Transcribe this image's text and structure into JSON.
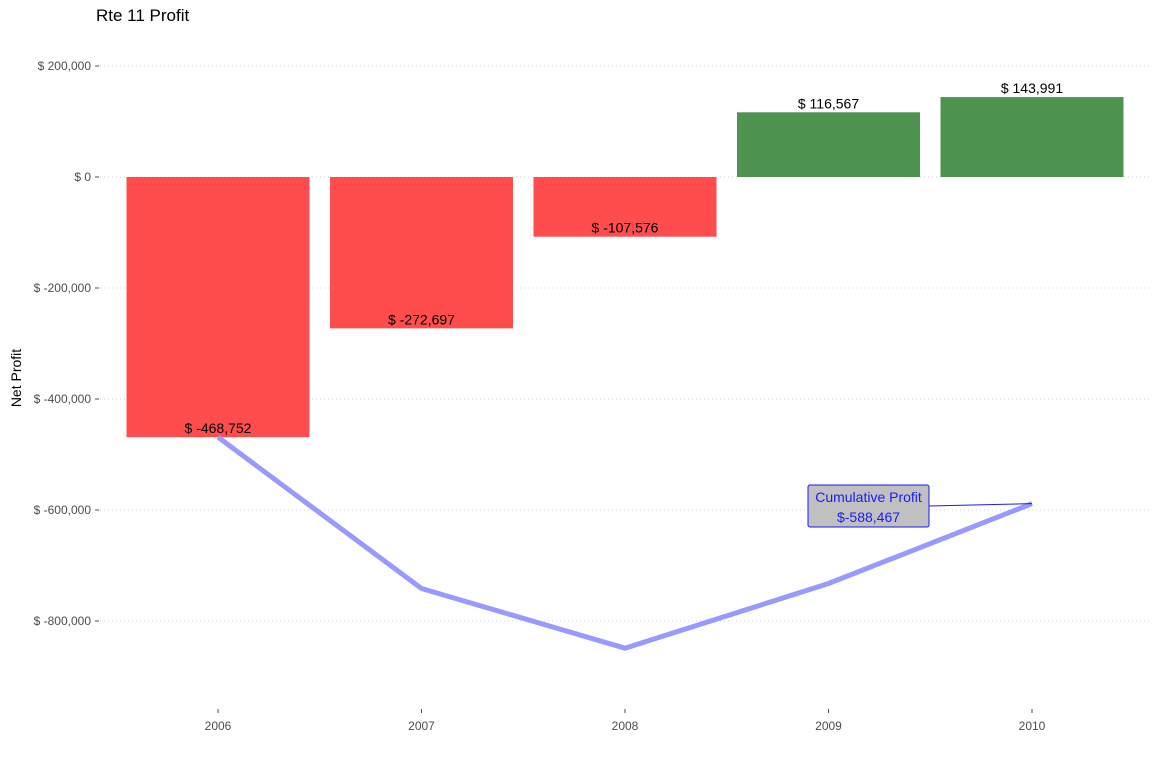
{
  "chart_data": {
    "type": "bar",
    "title": "Rte 11 Profit",
    "ylabel": "Net Profit",
    "xlabel": "",
    "categories": [
      "2006",
      "2007",
      "2008",
      "2009",
      "2010"
    ],
    "values": [
      -468752,
      -272697,
      -107576,
      116567,
      143991
    ],
    "value_labels": [
      "$ -468,752",
      "$ -272,697",
      "$ -107,576",
      "$ 116,567",
      "$ 143,991"
    ],
    "cumulative_line": {
      "name": "Cumulative Profit",
      "values": [
        -468752,
        -741449,
        -849025,
        -732458,
        -588467
      ],
      "color": "#9999ff"
    },
    "annotation": {
      "line1": "Cumulative Profit",
      "line2": "$-588,467",
      "category": "2010",
      "value": -588467,
      "text_color": "#1a1aff",
      "fill": "#c0c0c0"
    },
    "yticks": [
      200000,
      0,
      -200000,
      -400000,
      -600000,
      -800000
    ],
    "ytick_labels": [
      "$ 200,000",
      "$ 0",
      "$ -200,000",
      "$ -400,000",
      "$ -600,000",
      "$ -800,000"
    ],
    "ylim": [
      -945000,
      200000
    ],
    "colors": {
      "negative": "#ff4d4d",
      "positive": "#4f9350"
    },
    "grid": true,
    "legend": "none"
  }
}
